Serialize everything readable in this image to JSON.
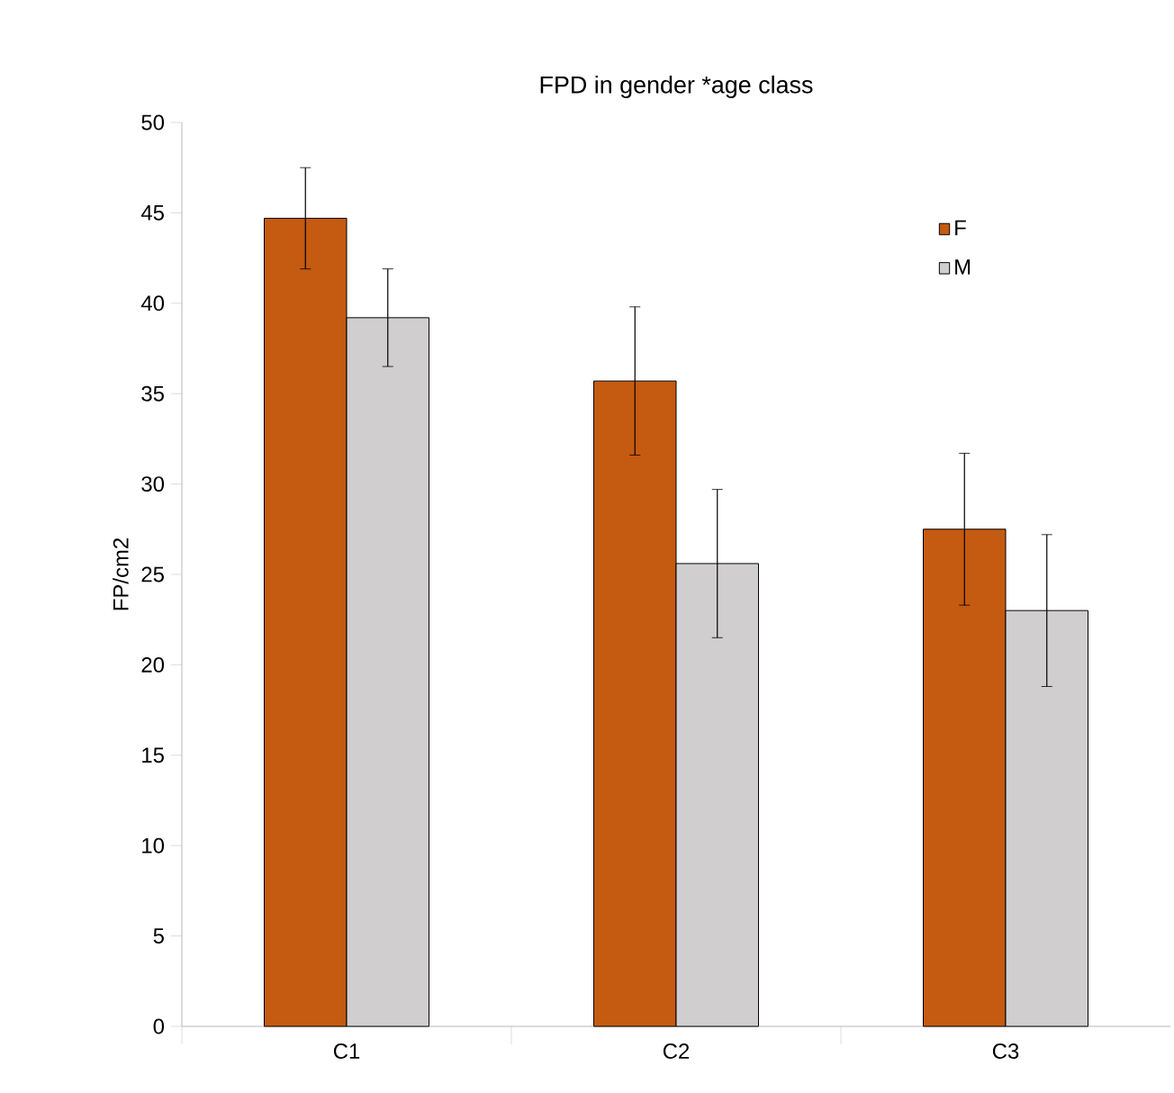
{
  "chart_data": {
    "type": "bar",
    "title": "FPD in gender *age class",
    "ylabel": "FP/cm2",
    "categories": [
      "C1",
      "C2",
      "C3"
    ],
    "series": [
      {
        "name": "F",
        "color": "#c55a11",
        "values": [
          44.7,
          35.7,
          27.5
        ],
        "errors": [
          2.8,
          4.1,
          4.2
        ]
      },
      {
        "name": "M",
        "color": "#d0cece",
        "values": [
          39.2,
          25.6,
          23.0
        ],
        "errors": [
          2.7,
          4.1,
          4.2
        ]
      }
    ],
    "ylim": [
      0,
      50
    ],
    "yticks": [
      0,
      5,
      10,
      15,
      20,
      25,
      30,
      35,
      40,
      45,
      50
    ],
    "grid": false,
    "legend": "top right"
  }
}
